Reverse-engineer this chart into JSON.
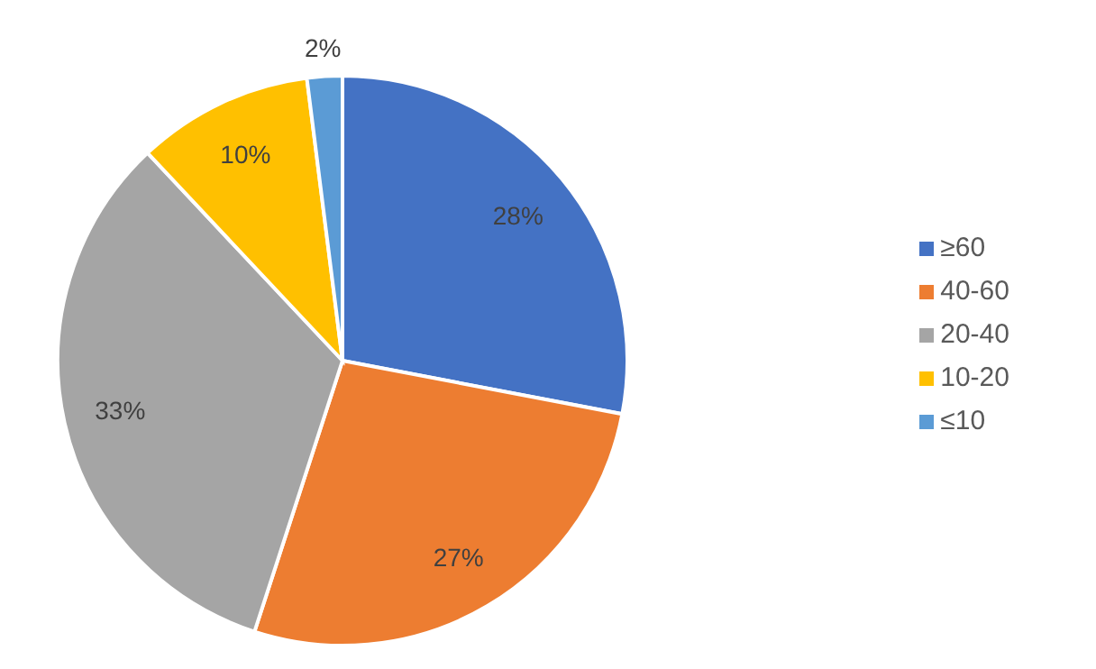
{
  "chart_data": {
    "type": "pie",
    "categories": [
      "≥60",
      "40-60",
      "20-40",
      "10-20",
      "≤10"
    ],
    "values": [
      28,
      27,
      33,
      10,
      2
    ],
    "value_labels": [
      "28%",
      "27%",
      "33%",
      "10%",
      "2%"
    ],
    "colors": [
      "#4472c4",
      "#ed7d31",
      "#a5a5a5",
      "#ffc000",
      "#5b9bd5"
    ],
    "legend": "right"
  }
}
